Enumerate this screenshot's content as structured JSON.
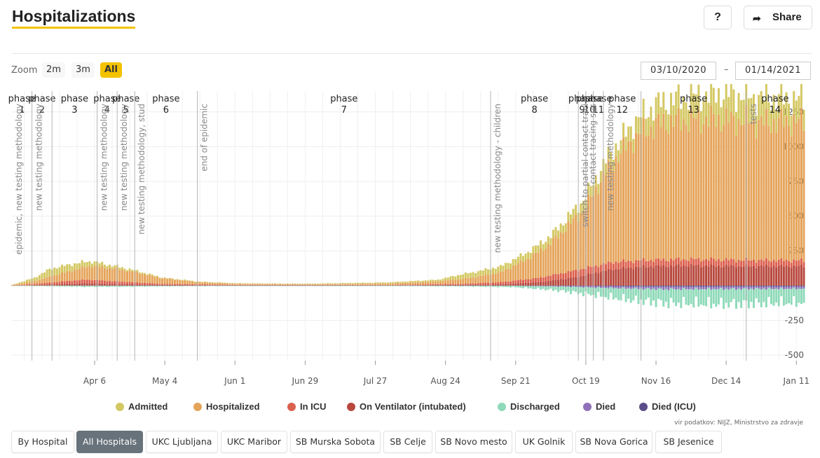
{
  "header": {
    "title": "Hospitalizations",
    "help_label": "?",
    "share_label": "Share"
  },
  "zoom": {
    "label": "Zoom",
    "options": [
      "2m",
      "3m",
      "All"
    ],
    "active": "All"
  },
  "date_range": {
    "from": "03/10/2020",
    "separator": "–",
    "to": "01/14/2021"
  },
  "chart_data": {
    "type": "bar",
    "stacked": true,
    "x_start": "2020-03-04",
    "x_end": "2021-01-14",
    "x_tick_labels": [
      "Apr 6",
      "May 4",
      "Jun 1",
      "Jun 29",
      "Jul 27",
      "Aug 24",
      "Sep 21",
      "Oct 19",
      "Nov 16",
      "Dec 14",
      "Jan 11"
    ],
    "y_ticks": [
      -500,
      -250,
      250,
      500,
      750,
      1000,
      1250
    ],
    "ylim": [
      -540,
      1400
    ],
    "grid": true,
    "series": [
      {
        "name": "Admitted",
        "color": "#d4c863",
        "keypoints": [
          [
            0,
            0
          ],
          [
            9,
            25
          ],
          [
            15,
            55
          ],
          [
            25,
            45
          ],
          [
            40,
            20
          ],
          [
            60,
            5
          ],
          [
            110,
            3
          ],
          [
            150,
            8
          ],
          [
            170,
            12
          ],
          [
            180,
            35
          ],
          [
            200,
            45
          ],
          [
            215,
            55
          ],
          [
            230,
            75
          ],
          [
            245,
            100
          ],
          [
            255,
            140
          ],
          [
            268,
            165
          ],
          [
            285,
            190
          ],
          [
            300,
            175
          ],
          [
            316,
            160
          ]
        ]
      },
      {
        "name": "Hospitalized",
        "color": "#e5a45b",
        "keypoints": [
          [
            0,
            5
          ],
          [
            9,
            20
          ],
          [
            20,
            60
          ],
          [
            32,
            100
          ],
          [
            42,
            90
          ],
          [
            50,
            70
          ],
          [
            60,
            40
          ],
          [
            75,
            15
          ],
          [
            90,
            8
          ],
          [
            120,
            5
          ],
          [
            150,
            10
          ],
          [
            170,
            20
          ],
          [
            183,
            40
          ],
          [
            195,
            70
          ],
          [
            205,
            140
          ],
          [
            215,
            230
          ],
          [
            228,
            420
          ],
          [
            238,
            680
          ],
          [
            248,
            880
          ],
          [
            258,
            980
          ],
          [
            268,
            1000
          ],
          [
            283,
            1010
          ],
          [
            300,
            990
          ],
          [
            316,
            1000
          ]
        ]
      },
      {
        "name": "In ICU",
        "color": "#dc604f",
        "keypoints": [
          [
            0,
            0
          ],
          [
            10,
            8
          ],
          [
            20,
            18
          ],
          [
            30,
            25
          ],
          [
            40,
            20
          ],
          [
            60,
            8
          ],
          [
            90,
            3
          ],
          [
            150,
            3
          ],
          [
            180,
            8
          ],
          [
            195,
            15
          ],
          [
            210,
            30
          ],
          [
            225,
            50
          ],
          [
            240,
            50
          ],
          [
            255,
            45
          ],
          [
            280,
            45
          ],
          [
            316,
            40
          ]
        ]
      },
      {
        "name": "On Ventilator (intubated)",
        "color": "#b8483d",
        "keypoints": [
          [
            0,
            0
          ],
          [
            10,
            5
          ],
          [
            20,
            12
          ],
          [
            30,
            18
          ],
          [
            40,
            12
          ],
          [
            60,
            5
          ],
          [
            90,
            2
          ],
          [
            150,
            2
          ],
          [
            180,
            5
          ],
          [
            195,
            10
          ],
          [
            210,
            25
          ],
          [
            225,
            60
          ],
          [
            240,
            120
          ],
          [
            255,
            140
          ],
          [
            270,
            145
          ],
          [
            290,
            140
          ],
          [
            316,
            140
          ]
        ]
      },
      {
        "name": "Discharged",
        "color": "#8fdab9",
        "keypoints": [
          [
            0,
            0
          ],
          [
            10,
            -3
          ],
          [
            30,
            -8
          ],
          [
            50,
            -6
          ],
          [
            70,
            -3
          ],
          [
            100,
            -2
          ],
          [
            150,
            -3
          ],
          [
            180,
            -5
          ],
          [
            200,
            -10
          ],
          [
            215,
            -25
          ],
          [
            230,
            -50
          ],
          [
            245,
            -80
          ],
          [
            260,
            -100
          ],
          [
            280,
            -110
          ],
          [
            300,
            -105
          ],
          [
            316,
            -100
          ]
        ]
      },
      {
        "name": "Died",
        "color": "#9070b8",
        "keypoints": [
          [
            0,
            0
          ],
          [
            20,
            0
          ],
          [
            40,
            -1
          ],
          [
            150,
            0
          ],
          [
            200,
            -1
          ],
          [
            220,
            -5
          ],
          [
            240,
            -12
          ],
          [
            260,
            -18
          ],
          [
            300,
            -16
          ],
          [
            316,
            -15
          ]
        ]
      },
      {
        "name": "Died (ICU)",
        "color": "#5a4d8a",
        "keypoints": [
          [
            0,
            0
          ],
          [
            200,
            0
          ],
          [
            220,
            -2
          ],
          [
            240,
            -6
          ],
          [
            260,
            -8
          ],
          [
            316,
            -7
          ]
        ]
      }
    ],
    "phases": [
      {
        "label": "phase",
        "num": "1"
      },
      {
        "label": "phase",
        "num": "2"
      },
      {
        "label": "phase",
        "num": "3"
      },
      {
        "label": "phase",
        "num": "4"
      },
      {
        "label": "phase",
        "num": "5"
      },
      {
        "label": "phase",
        "num": "6"
      },
      {
        "label": "phase",
        "num": "7"
      },
      {
        "label": "phase",
        "num": "8"
      },
      {
        "label": "phase",
        "num": "9"
      },
      {
        "label": "phase",
        "num": "10"
      },
      {
        "label": "phase",
        "num": "11"
      },
      {
        "label": "phase",
        "num": "12"
      },
      {
        "label": "phase",
        "num": "13"
      },
      {
        "label": "phase",
        "num": "14"
      }
    ],
    "annotations": [
      "epidemic, new testing methodology",
      "new testing methodology",
      "new testing methodology",
      "new testing methodology",
      "new testing methodology, stud",
      "end of epidemic",
      "new testing methodology - children",
      "switch to partial contact traci",
      "contact tracing sus",
      "new testing methodology",
      "tests"
    ]
  },
  "legend": [
    {
      "label": "Admitted",
      "color": "#d4c863"
    },
    {
      "label": "Hospitalized",
      "color": "#e5a45b"
    },
    {
      "label": "In ICU",
      "color": "#dc604f"
    },
    {
      "label": "On Ventilator (intubated)",
      "color": "#b8483d"
    },
    {
      "label": "Discharged",
      "color": "#8fdab9"
    },
    {
      "label": "Died",
      "color": "#9070b8"
    },
    {
      "label": "Died (ICU)",
      "color": "#5a4d8a"
    }
  ],
  "source_text": "vir podatkov: NIJZ, Ministrstvo za zdravje",
  "hospital_filters": [
    "By Hospital",
    "All Hospitals",
    "UKC Ljubljana",
    "UKC Maribor",
    "SB Murska Sobota",
    "SB Celje",
    "SB Novo mesto",
    "UK Golnik",
    "SB Nova Gorica",
    "SB Jesenice"
  ],
  "active_filter": "All Hospitals"
}
